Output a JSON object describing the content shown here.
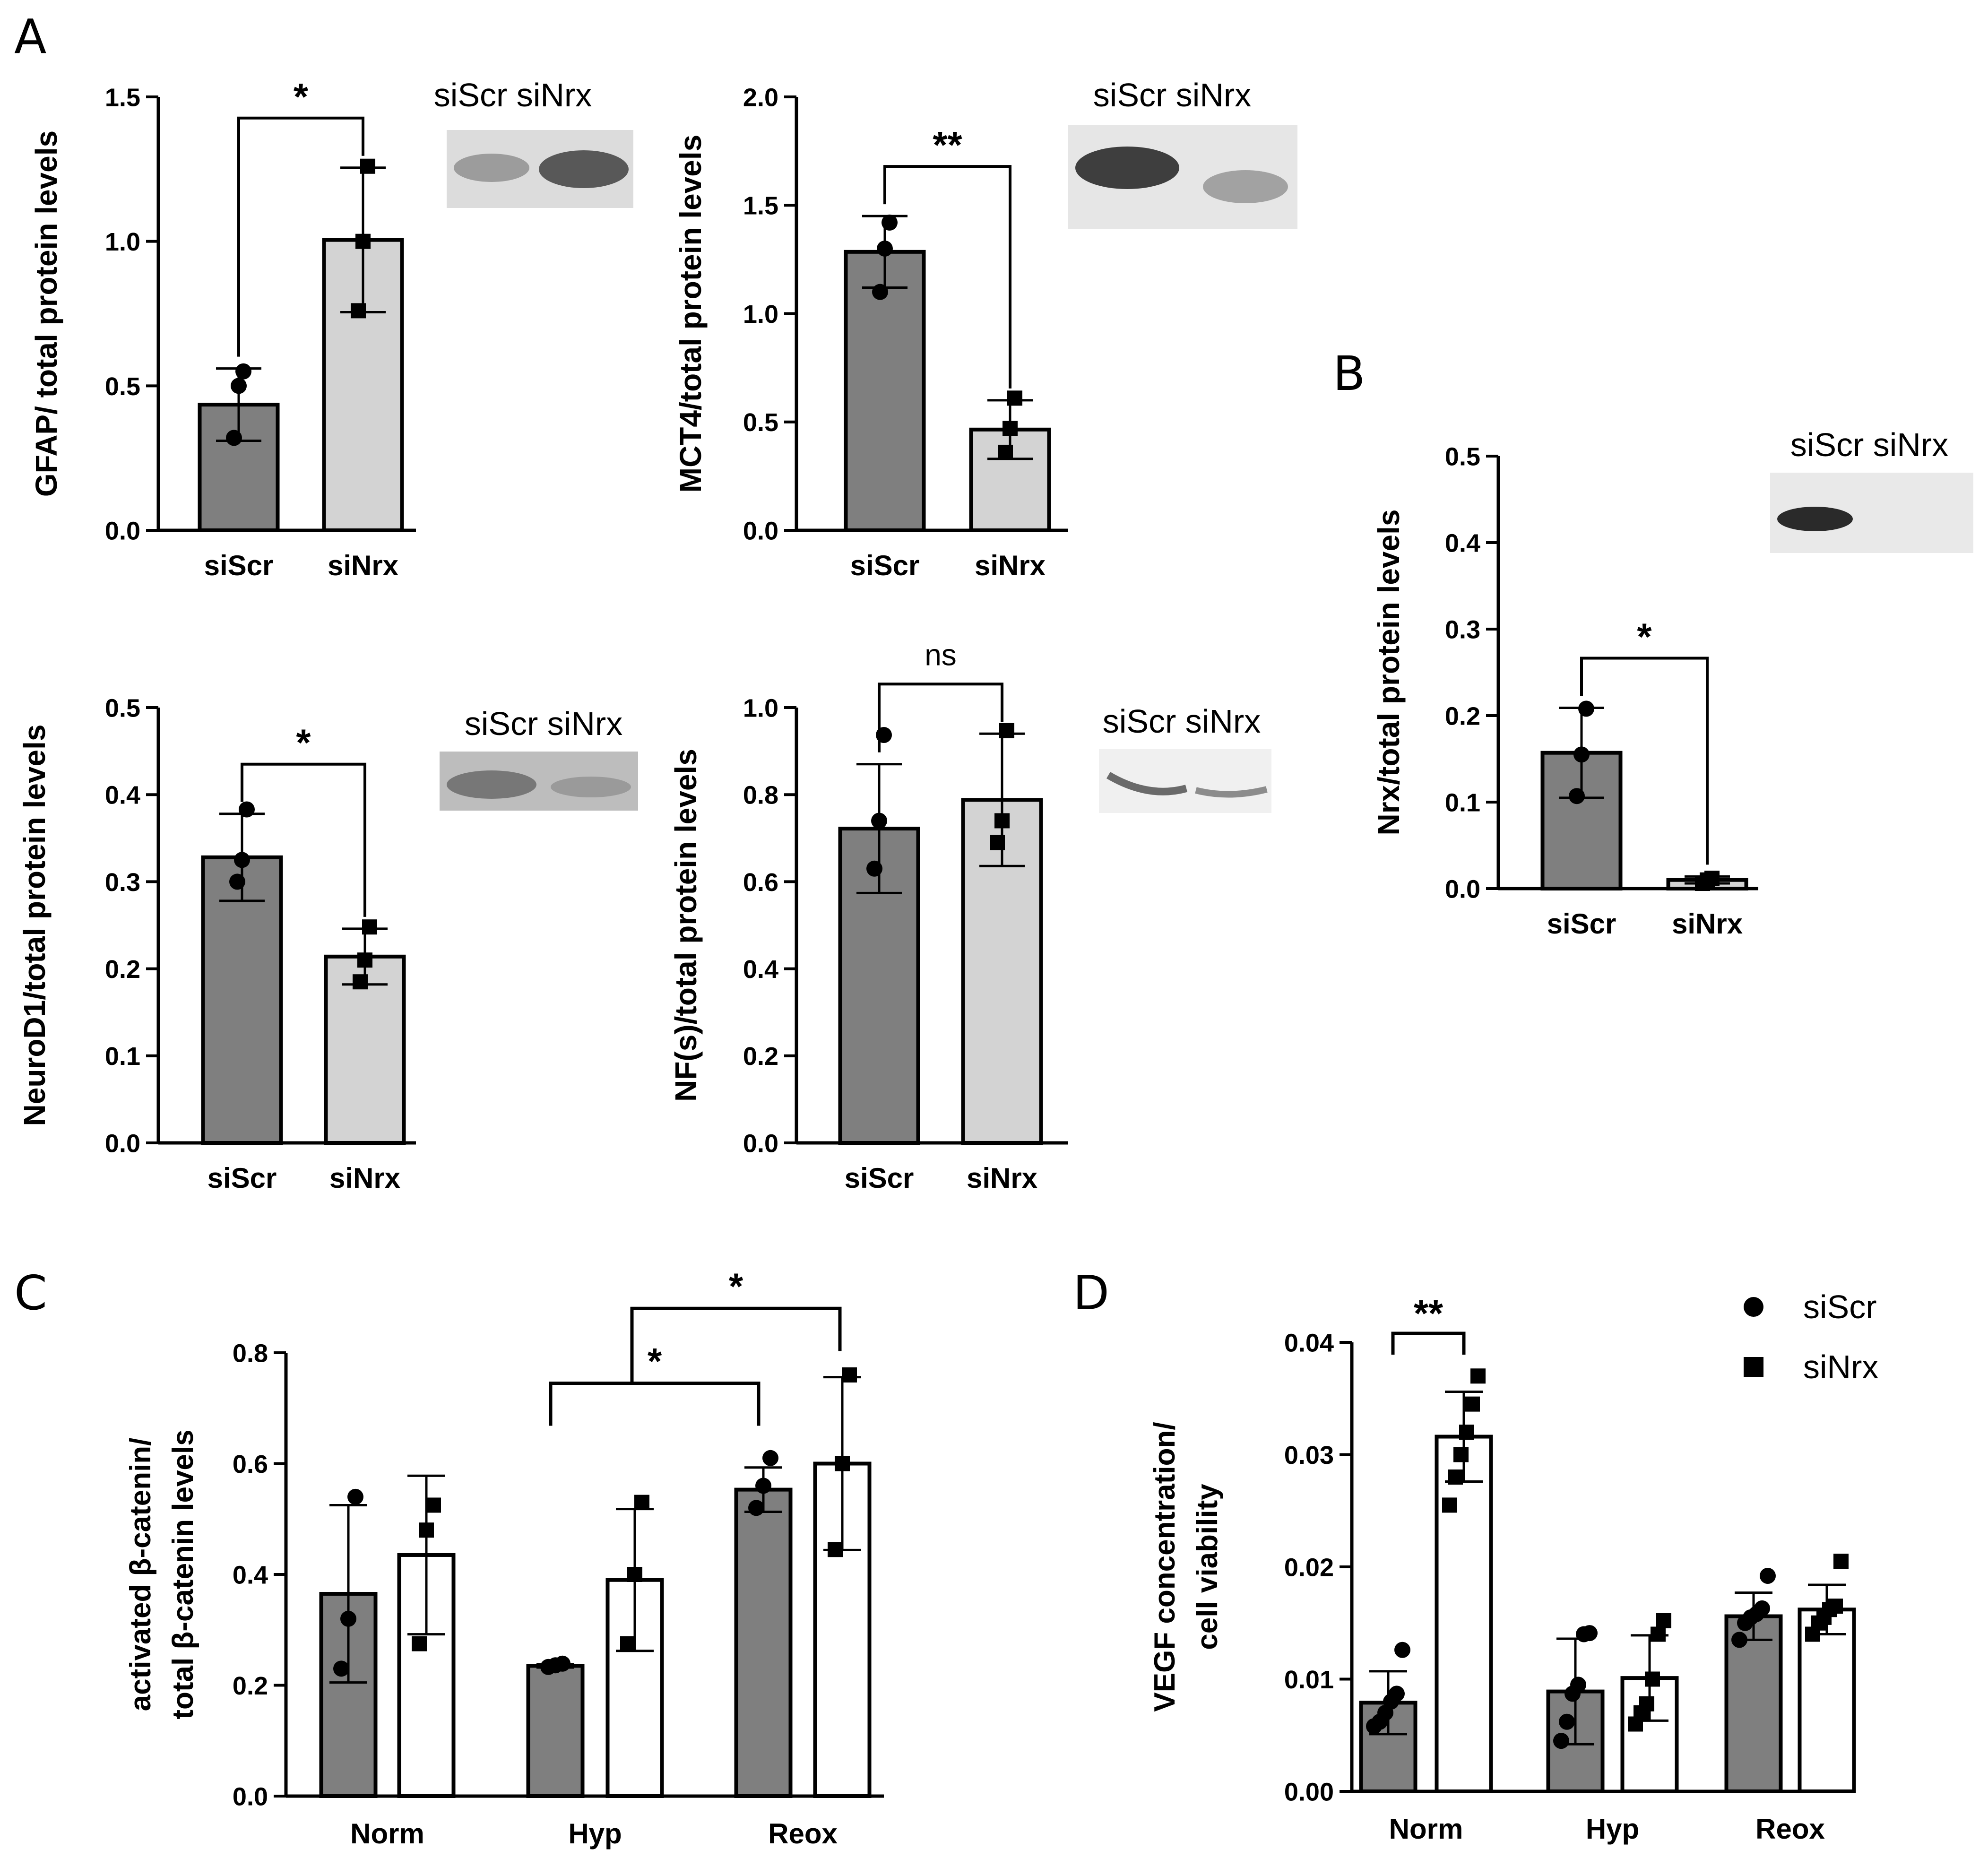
{
  "panel_letters": {
    "a": "A",
    "b": "B",
    "c": "C",
    "d": "D"
  },
  "blot_labels": [
    "siScr siNrx",
    "siScr siNrx",
    "siScr siNrx",
    "siScr siNrx",
    "siScr siNrx"
  ],
  "legend": {
    "series1": "siScr",
    "series2": "siNrx"
  },
  "colors": {
    "dark_bar": "#7f7f7f",
    "light_bar": "#d3d3d3",
    "open_bar": "#ffffff",
    "ink": "#000000"
  },
  "chart_data": [
    {
      "id": "gfap",
      "type": "bar",
      "categories": [
        "siScr",
        "siNrx"
      ],
      "values": [
        0.435,
        1.005
      ],
      "errors": [
        0.125,
        0.25
      ],
      "points": [
        [
          0.32,
          0.5,
          0.55
        ],
        [
          0.76,
          1.0,
          1.26
        ]
      ],
      "ylabel": "GFAP/ total protein levels",
      "ylim": [
        0,
        1.5
      ],
      "yticks": [
        "0.0",
        "0.5",
        "1.0",
        "1.5"
      ],
      "significance": "*"
    },
    {
      "id": "mct4",
      "type": "bar",
      "categories": [
        "siScr",
        "siNrx"
      ],
      "values": [
        1.285,
        0.465
      ],
      "errors": [
        0.165,
        0.135
      ],
      "points": [
        [
          1.1,
          1.3,
          1.42
        ],
        [
          0.36,
          0.47,
          0.61
        ]
      ],
      "ylabel": "MCT4/total protein levels",
      "ylim": [
        0,
        2.0
      ],
      "yticks": [
        "0.0",
        "0.5",
        "1.0",
        "1.5",
        "2.0"
      ],
      "significance": "**"
    },
    {
      "id": "nrx",
      "type": "bar",
      "categories": [
        "siScr",
        "siNrx"
      ],
      "values": [
        0.157,
        0.01
      ],
      "errors": [
        0.052,
        0.004
      ],
      "points": [
        [
          0.107,
          0.155,
          0.208
        ],
        [
          0.006,
          0.01,
          0.012
        ]
      ],
      "ylabel": "Nrx/total protein levels",
      "ylim": [
        0,
        0.5
      ],
      "yticks": [
        "0.0",
        "0.1",
        "0.2",
        "0.3",
        "0.4",
        "0.5"
      ],
      "significance": "*"
    },
    {
      "id": "neurod1",
      "type": "bar",
      "categories": [
        "siScr",
        "siNrx"
      ],
      "values": [
        0.328,
        0.214
      ],
      "errors": [
        0.05,
        0.032
      ],
      "points": [
        [
          0.3,
          0.325,
          0.383
        ],
        [
          0.185,
          0.21,
          0.248
        ]
      ],
      "ylabel": "NeuroD1/total protein levels",
      "ylim": [
        0,
        0.5
      ],
      "yticks": [
        "0.0",
        "0.1",
        "0.2",
        "0.3",
        "0.4",
        "0.5"
      ],
      "significance": "*"
    },
    {
      "id": "nfs",
      "type": "bar",
      "categories": [
        "siScr",
        "siNrx"
      ],
      "values": [
        0.722,
        0.788
      ],
      "errors": [
        0.148,
        0.152
      ],
      "points": [
        [
          0.63,
          0.74,
          0.937
        ],
        [
          0.69,
          0.74,
          0.947
        ]
      ],
      "ylabel": "NF(s)/total protein levels",
      "ylim": [
        0,
        1.0
      ],
      "yticks": [
        "0.0",
        "0.2",
        "0.4",
        "0.6",
        "0.8",
        "1.0"
      ],
      "significance": "ns"
    },
    {
      "id": "catenin",
      "type": "bar",
      "categories": [
        "Norm",
        "Hyp",
        "Reox"
      ],
      "series": [
        {
          "name": "siScr",
          "values": [
            0.365,
            0.235,
            0.553
          ],
          "errors": [
            0.16,
            0.003,
            0.04
          ],
          "points": [
            [
              0.23,
              0.32,
              0.54
            ],
            [
              0.233,
              0.236,
              0.239
            ],
            [
              0.52,
              0.56,
              0.61
            ]
          ]
        },
        {
          "name": "siNrx",
          "values": [
            0.435,
            0.39,
            0.6
          ],
          "errors": [
            0.143,
            0.128,
            0.156
          ],
          "points": [
            [
              0.275,
              0.48,
              0.525
            ],
            [
              0.275,
              0.4,
              0.53
            ],
            [
              0.445,
              0.6,
              0.76
            ]
          ]
        }
      ],
      "ylabel_lines": [
        "activated β-catenin/",
        "total β-catenin levels"
      ],
      "ylim": [
        0,
        0.8
      ],
      "yticks": [
        "0.0",
        "0.2",
        "0.4",
        "0.6",
        "0.8"
      ],
      "significance": [
        "*",
        "*"
      ]
    },
    {
      "id": "vegf",
      "type": "bar",
      "categories": [
        "Norm",
        "Hyp",
        "Reox"
      ],
      "series": [
        {
          "name": "siScr",
          "values": [
            0.0079,
            0.0089,
            0.0156
          ],
          "errors": [
            0.0028,
            0.0047,
            0.0021
          ],
          "points": [
            [
              0.0058,
              0.0062,
              0.007,
              0.008,
              0.0087,
              0.0126
            ],
            [
              0.0045,
              0.0062,
              0.0087,
              0.0095,
              0.014,
              0.0141
            ],
            [
              0.0135,
              0.015,
              0.0155,
              0.0158,
              0.0163,
              0.0192
            ]
          ]
        },
        {
          "name": "siNrx",
          "values": [
            0.0316,
            0.0101,
            0.0162
          ],
          "errors": [
            0.004,
            0.0038,
            0.0022
          ],
          "points": [
            [
              0.0255,
              0.028,
              0.03,
              0.032,
              0.0345,
              0.037
            ],
            [
              0.006,
              0.007,
              0.0078,
              0.01,
              0.014,
              0.0152
            ],
            [
              0.014,
              0.015,
              0.0155,
              0.0162,
              0.0165,
              0.0205
            ]
          ]
        }
      ],
      "ylabel_lines": [
        "VEGF concentration/",
        "cell viability"
      ],
      "ylim": [
        0,
        0.04
      ],
      "yticks": [
        "0.00",
        "0.01",
        "0.02",
        "0.03",
        "0.04"
      ],
      "significance": [
        "**"
      ]
    }
  ]
}
